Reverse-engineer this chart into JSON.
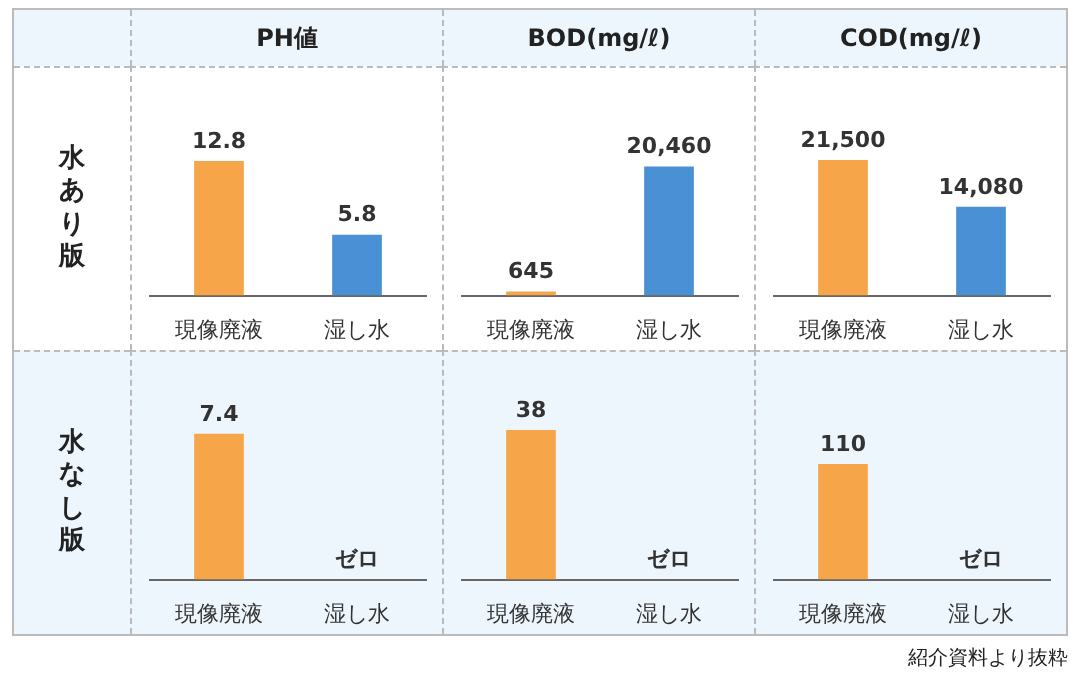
{
  "chart_data": [
    {
      "type": "bar",
      "title": "PH値",
      "ylabel": "水あり版",
      "categories": [
        "現像廃液",
        "湿し水"
      ],
      "values": [
        12.8,
        5.8
      ],
      "colors": [
        "#f6a548",
        "#4a90d4"
      ],
      "value_labels": [
        "12.8",
        "5.8"
      ]
    },
    {
      "type": "bar",
      "title": "BOD(mg/ℓ)",
      "categories": [
        "現像廃液",
        "湿し水"
      ],
      "values": [
        645,
        20460
      ],
      "colors": [
        "#f6a548",
        "#4a90d4"
      ],
      "value_labels": [
        "645",
        "20,460"
      ]
    },
    {
      "type": "bar",
      "title": "COD(mg/ℓ)",
      "categories": [
        "現像廃液",
        "湿し水"
      ],
      "values": [
        21500,
        14080
      ],
      "colors": [
        "#f6a548",
        "#4a90d4"
      ],
      "value_labels": [
        "21,500",
        "14,080"
      ]
    },
    {
      "type": "bar",
      "ylabel": "水なし版",
      "categories": [
        "現像廃液",
        "湿し水"
      ],
      "values": [
        7.4,
        0
      ],
      "colors": [
        "#f6a548",
        "#4a90d4"
      ],
      "value_labels": [
        "7.4",
        "ゼロ"
      ]
    },
    {
      "type": "bar",
      "categories": [
        "現像廃液",
        "湿し水"
      ],
      "values": [
        38,
        0
      ],
      "colors": [
        "#f6a548",
        "#4a90d4"
      ],
      "value_labels": [
        "38",
        "ゼロ"
      ]
    },
    {
      "type": "bar",
      "categories": [
        "現像廃液",
        "湿し水"
      ],
      "values": [
        110,
        0
      ],
      "colors": [
        "#f6a548",
        "#4a90d4"
      ],
      "value_labels": [
        "110",
        "ゼロ"
      ],
      "annotations": [
        "紹介資料より抜粋"
      ]
    }
  ]
}
